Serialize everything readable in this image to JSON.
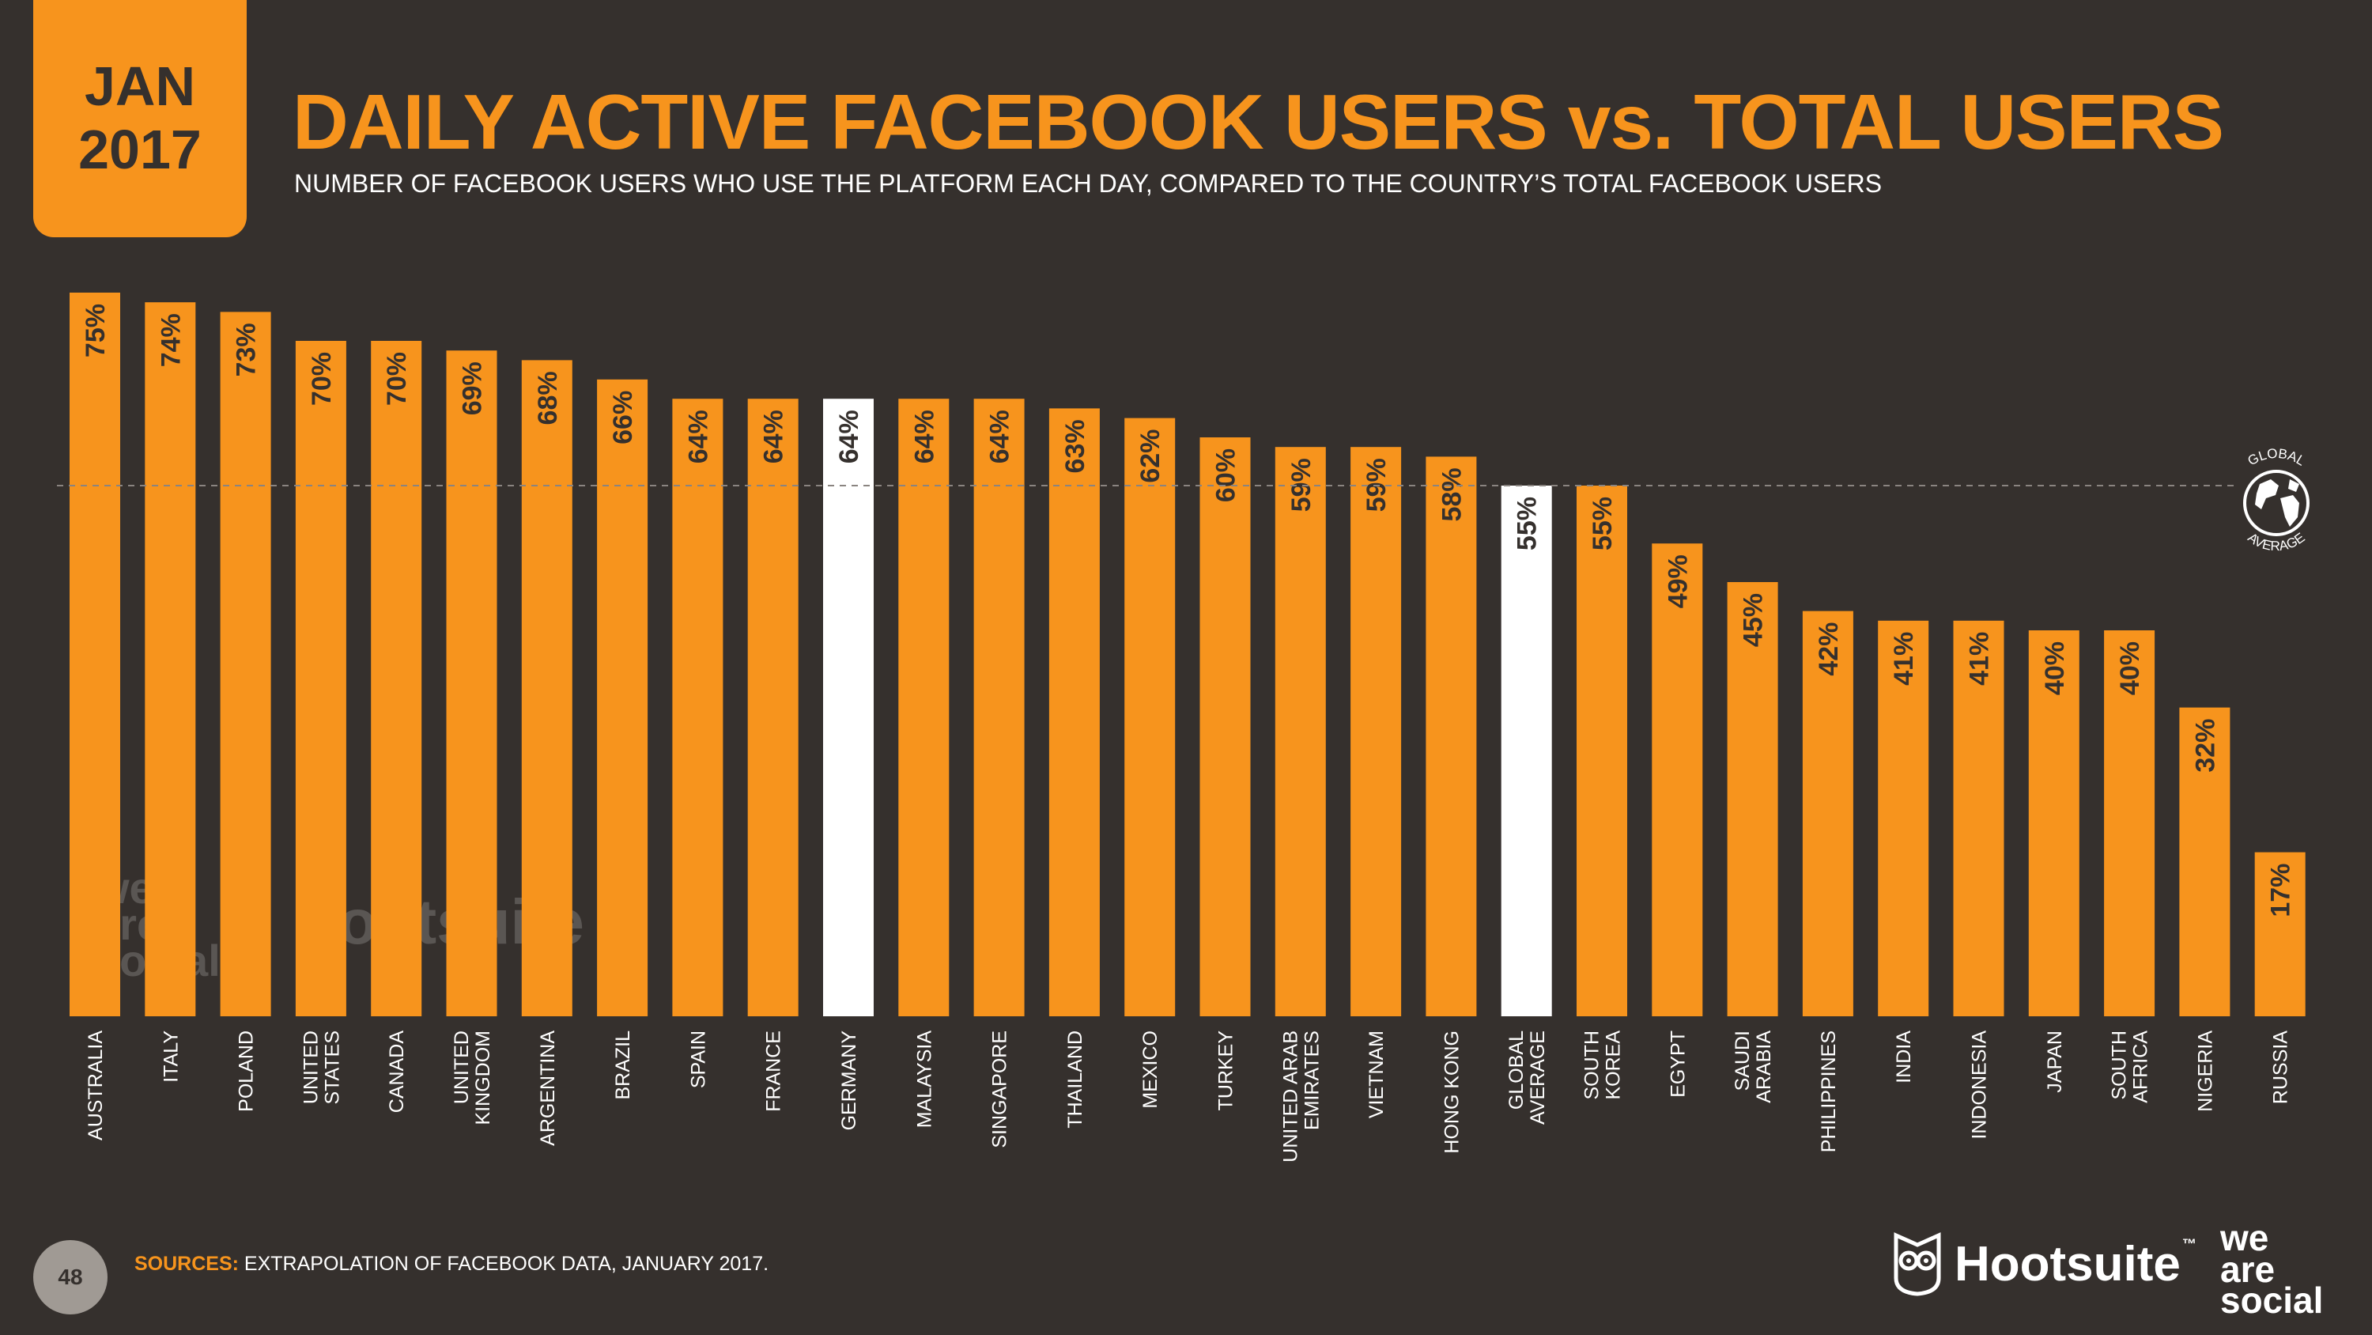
{
  "header": {
    "date_month": "JAN",
    "date_year": "2017",
    "title": "DAILY ACTIVE FACEBOOK USERS vs. TOTAL USERS",
    "subtitle": "NUMBER OF FACEBOOK USERS WHO USE THE PLATFORM EACH DAY, COMPARED TO THE COUNTRY’S TOTAL FACEBOOK USERS"
  },
  "chart_data": {
    "type": "bar",
    "title": "DAILY ACTIVE FACEBOOK USERS vs. TOTAL USERS",
    "subtitle": "NUMBER OF FACEBOOK USERS WHO USE THE PLATFORM EACH DAY, COMPARED TO THE COUNTRY’S TOTAL FACEBOOK USERS",
    "xlabel": "",
    "ylabel": "",
    "ylim": [
      0,
      100
    ],
    "grid": false,
    "categories": [
      "AUSTRALIA",
      "ITALY",
      "POLAND",
      "UNITED STATES",
      "CANADA",
      "UNITED KINGDOM",
      "ARGENTINA",
      "BRAZIL",
      "SPAIN",
      "FRANCE",
      "GERMANY",
      "MALAYSIA",
      "SINGAPORE",
      "THAILAND",
      "MEXICO",
      "TURKEY",
      "UNITED ARAB EMIRATES",
      "VIETNAM",
      "HONG KONG",
      "GLOBAL AVERAGE",
      "SOUTH KOREA",
      "EGYPT",
      "SAUDI ARABIA",
      "PHILIPPINES",
      "INDIA",
      "INDONESIA",
      "JAPAN",
      "SOUTH AFRICA",
      "NIGERIA",
      "RUSSIA"
    ],
    "category_label_lines": [
      [
        "AUSTRALIA"
      ],
      [
        "ITALY"
      ],
      [
        "POLAND"
      ],
      [
        "UNITED",
        "STATES"
      ],
      [
        "CANADA"
      ],
      [
        "UNITED",
        "KINGDOM"
      ],
      [
        "ARGENTINA"
      ],
      [
        "BRAZIL"
      ],
      [
        "SPAIN"
      ],
      [
        "FRANCE"
      ],
      [
        "GERMANY"
      ],
      [
        "MALAYSIA"
      ],
      [
        "SINGAPORE"
      ],
      [
        "THAILAND"
      ],
      [
        "MEXICO"
      ],
      [
        "TURKEY"
      ],
      [
        "UNITED ARAB",
        "EMIRATES"
      ],
      [
        "VIETNAM"
      ],
      [
        "HONG KONG"
      ],
      [
        "GLOBAL",
        "AVERAGE"
      ],
      [
        "SOUTH",
        "KOREA"
      ],
      [
        "EGYPT"
      ],
      [
        "SAUDI",
        "ARABIA"
      ],
      [
        "PHILIPPINES"
      ],
      [
        "INDIA"
      ],
      [
        "INDONESIA"
      ],
      [
        "JAPAN"
      ],
      [
        "SOUTH",
        "AFRICA"
      ],
      [
        "NIGERIA"
      ],
      [
        "RUSSIA"
      ]
    ],
    "values": [
      75,
      74,
      73,
      70,
      70,
      69,
      68,
      66,
      64,
      64,
      64,
      64,
      64,
      63,
      62,
      60,
      59,
      59,
      58,
      55,
      55,
      49,
      45,
      42,
      41,
      41,
      40,
      40,
      32,
      17
    ],
    "value_labels": [
      "75%",
      "74%",
      "73%",
      "70%",
      "70%",
      "69%",
      "68%",
      "66%",
      "64%",
      "64%",
      "64%",
      "64%",
      "64%",
      "63%",
      "62%",
      "60%",
      "59%",
      "59%",
      "58%",
      "55%",
      "55%",
      "49%",
      "45%",
      "42%",
      "41%",
      "41%",
      "40%",
      "40%",
      "32%",
      "17%"
    ],
    "highlighted": [
      "GERMANY",
      "GLOBAL AVERAGE"
    ],
    "reference_line": {
      "value": 55,
      "style": "dashed",
      "label_lines": [
        "GLOBAL",
        "AVERAGE"
      ]
    },
    "colors": {
      "bar": "#f7941d",
      "highlight": "#ffffff",
      "background": "#35302d",
      "reference_line": "#8a8480"
    }
  },
  "watermark": {
    "we_are_social": [
      "we",
      "are",
      "social"
    ],
    "hootsuite": "Hootsuite"
  },
  "footer": {
    "page_number": "48",
    "sources_label": "SOURCES:",
    "sources_text": " EXTRAPOLATION OF FACEBOOK DATA, JANUARY 2017.",
    "hootsuite_logo": "Hootsuite",
    "hootsuite_tm": "™",
    "we_are_social_logo": [
      "we",
      "are",
      "social"
    ]
  },
  "colors": {
    "accent": "#f7941d",
    "background": "#35302d",
    "text": "#ffffff"
  }
}
